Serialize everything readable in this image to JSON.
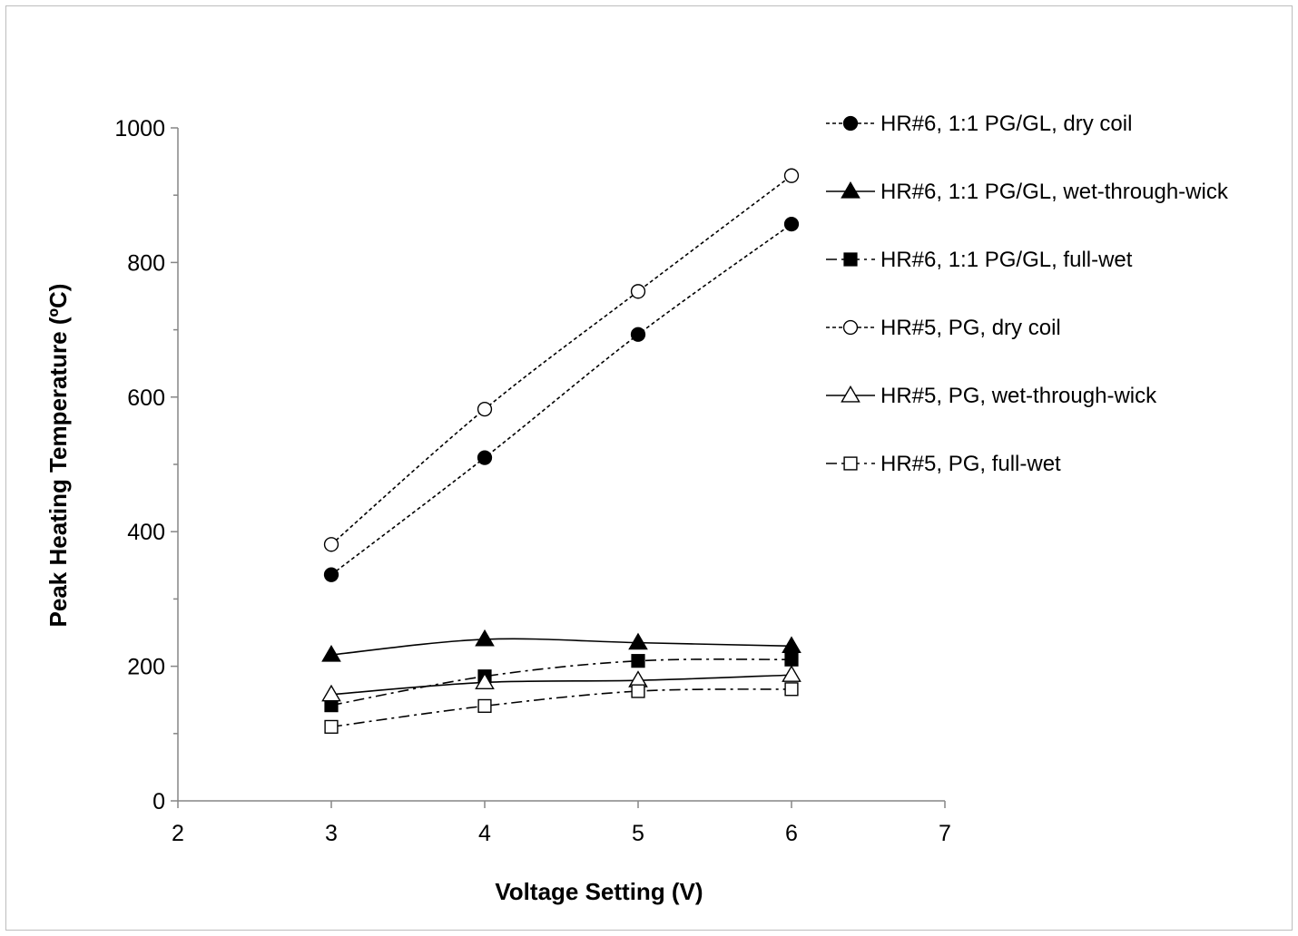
{
  "chart_data": {
    "type": "line",
    "title": "",
    "xlabel": "Voltage Setting (V)",
    "ylabel": "Peak Heating Temperature (ºC)",
    "xlim": [
      2,
      7
    ],
    "ylim": [
      0,
      1000
    ],
    "x_ticks": [
      2,
      3,
      4,
      5,
      6,
      7
    ],
    "y_ticks": [
      0,
      200,
      400,
      600,
      800,
      1000
    ],
    "grid": false,
    "legend_position": "right",
    "x": [
      3,
      4,
      5,
      6
    ],
    "series": [
      {
        "name": "HR#6, 1:1 PG/GL, dry coil",
        "values": [
          336,
          510,
          693,
          857
        ],
        "marker": "circle",
        "filled": true,
        "line": "dotted",
        "color": "#000000"
      },
      {
        "name": "HR#6, 1:1 PG/GL, wet-through-wick",
        "values": [
          217,
          240,
          235,
          230
        ],
        "marker": "triangle",
        "filled": true,
        "line": "solid",
        "color": "#000000"
      },
      {
        "name": "HR#6, 1:1 PG/GL, full-wet",
        "values": [
          142,
          185,
          208,
          210
        ],
        "marker": "square",
        "filled": true,
        "line": "dashdot",
        "color": "#000000"
      },
      {
        "name": "HR#5, PG, dry coil",
        "values": [
          381,
          582,
          757,
          929
        ],
        "marker": "circle",
        "filled": false,
        "line": "dotted",
        "color": "#000000"
      },
      {
        "name": "HR#5, PG, wet-through-wick",
        "values": [
          158,
          176,
          179,
          187
        ],
        "marker": "triangle",
        "filled": false,
        "line": "solid",
        "color": "#000000"
      },
      {
        "name": "HR#5, PG, full-wet",
        "values": [
          110,
          141,
          163,
          166
        ],
        "marker": "square",
        "filled": false,
        "line": "dashdot",
        "color": "#000000"
      }
    ]
  }
}
